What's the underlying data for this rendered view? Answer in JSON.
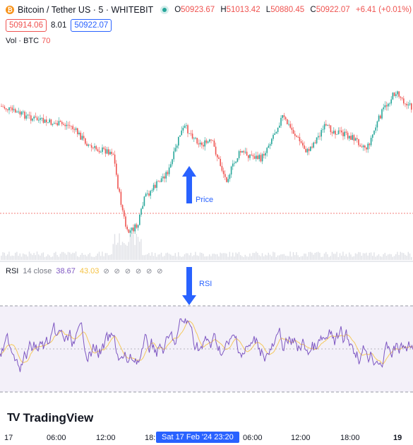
{
  "header": {
    "coin_glyph": "₿",
    "title": "Bitcoin / Tether US · 5 · WHITEBIT",
    "o_label": "O",
    "o_val": "50923.67",
    "h_label": "H",
    "h_val": "51013.42",
    "l_label": "L",
    "l_val": "50880.45",
    "c_label": "C",
    "c_val": "50922.07",
    "change": "+6.41 (+0.01%)",
    "status_color": "#26a69a"
  },
  "quote": {
    "sell": "50914.06",
    "spread": "8.01",
    "buy": "50922.07"
  },
  "volume": {
    "label": "Vol · BTC",
    "value": "70"
  },
  "rsi": {
    "name": "RSI",
    "params": "14 close",
    "value": "38.67",
    "ma_value": "43.03",
    "icons": "⊘ ⊘ ⊘ ⊘ ⊘ ⊘"
  },
  "annotations": {
    "price": "Price",
    "rsi": "RSI"
  },
  "brand": {
    "logo": "TV",
    "name": "TradingView"
  },
  "time_axis": {
    "labels": [
      "17",
      "06:00",
      "12:00",
      "18:",
      "06:00",
      "12:00",
      "18:00",
      "19"
    ],
    "crosshair": "Sat 17 Feb '24   23:20"
  },
  "colors": {
    "up": "#26a69a",
    "down": "#ef5350",
    "rsi_line": "#7e57c2",
    "rsi_ma": "#f5c242",
    "accent": "#2962ff"
  }
}
